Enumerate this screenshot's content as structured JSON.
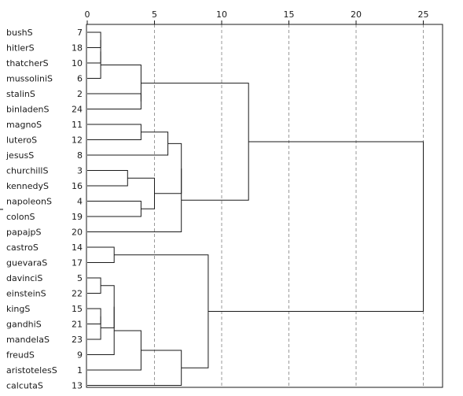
{
  "axis": {
    "ticks": [
      0,
      5,
      10,
      15,
      20,
      25
    ]
  },
  "side_label": "Y",
  "leaves": [
    {
      "label": "bushS",
      "id": "7"
    },
    {
      "label": "hitlerS",
      "id": "18"
    },
    {
      "label": "thatcherS",
      "id": "10"
    },
    {
      "label": "mussoliniS",
      "id": "6"
    },
    {
      "label": "stalinS",
      "id": "2"
    },
    {
      "label": "binladenS",
      "id": "24"
    },
    {
      "label": "magnoS",
      "id": "11"
    },
    {
      "label": "luteroS",
      "id": "12"
    },
    {
      "label": "jesusS",
      "id": "8"
    },
    {
      "label": "churchillS",
      "id": "3"
    },
    {
      "label": "kennedyS",
      "id": "16"
    },
    {
      "label": "napoleonS",
      "id": "4"
    },
    {
      "label": "colonS",
      "id": "19"
    },
    {
      "label": "papajpS",
      "id": "20"
    },
    {
      "label": "castroS",
      "id": "14"
    },
    {
      "label": "guevaraS",
      "id": "17"
    },
    {
      "label": "davinciS",
      "id": "5"
    },
    {
      "label": "einsteinS",
      "id": "22"
    },
    {
      "label": "kingS",
      "id": "15"
    },
    {
      "label": "gandhiS",
      "id": "21"
    },
    {
      "label": "mandelaS",
      "id": "23"
    },
    {
      "label": "freudS",
      "id": "9"
    },
    {
      "label": "aristotelesS",
      "id": "1"
    },
    {
      "label": "calcutaS",
      "id": "13"
    }
  ],
  "merges": [
    {
      "a": 0,
      "b": 1,
      "dist": 1.0
    },
    {
      "a": 24,
      "b": 2,
      "dist": 1.0
    },
    {
      "a": 25,
      "b": 3,
      "dist": 1.0
    },
    {
      "a": 4,
      "b": 5,
      "dist": 4.0
    },
    {
      "a": 26,
      "b": 27,
      "dist": 4.0
    },
    {
      "a": 9,
      "b": 10,
      "dist": 3.0
    },
    {
      "a": 11,
      "b": 12,
      "dist": 4.0
    },
    {
      "a": 29,
      "b": 30,
      "dist": 5.0
    },
    {
      "a": 6,
      "b": 7,
      "dist": 4.0
    },
    {
      "a": 32,
      "b": 8,
      "dist": 6.0
    },
    {
      "a": 33,
      "b": 31,
      "dist": 7.0
    },
    {
      "a": 34,
      "b": 13,
      "dist": 7.0
    },
    {
      "a": 28,
      "b": 35,
      "dist": 12.0
    },
    {
      "a": 16,
      "b": 17,
      "dist": 1.0
    },
    {
      "a": 18,
      "b": 19,
      "dist": 1.0
    },
    {
      "a": 38,
      "b": 20,
      "dist": 1.0
    },
    {
      "a": 37,
      "b": 39,
      "dist": 2.0
    },
    {
      "a": 40,
      "b": 21,
      "dist": 2.0
    },
    {
      "a": 41,
      "b": 22,
      "dist": 4.0
    },
    {
      "a": 14,
      "b": 15,
      "dist": 2.0
    },
    {
      "a": 42,
      "b": 23,
      "dist": 7.0
    },
    {
      "a": 43,
      "b": 44,
      "dist": 9.0
    },
    {
      "a": 36,
      "b": 45,
      "dist": 25.0
    }
  ]
}
